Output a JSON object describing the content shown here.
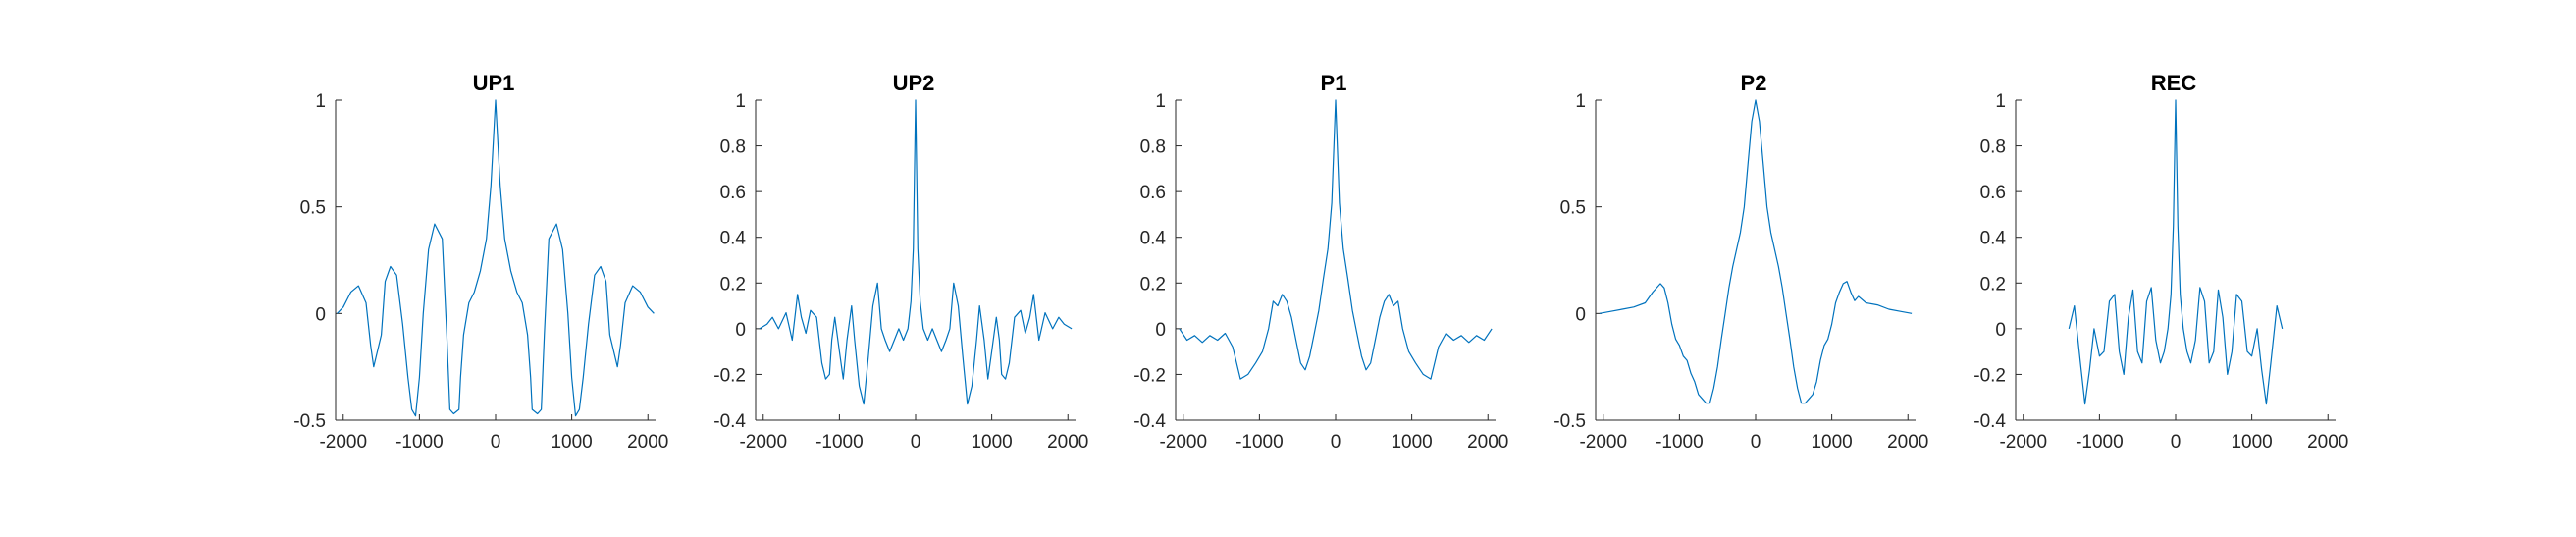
{
  "figure": {
    "background": "#ffffff",
    "line_color": "#0072BD",
    "axis_color": "#262626"
  },
  "chart_data": [
    {
      "type": "line",
      "title": "UP1",
      "xlim": [
        -2100,
        2100
      ],
      "ylim": [
        -0.5,
        1
      ],
      "xticks": [
        -2000,
        -1000,
        0,
        1000,
        2000
      ],
      "xtick_labels": [
        "-2000",
        "-1000",
        "0",
        "1000",
        "2000"
      ],
      "yticks": [
        -0.5,
        0,
        0.5,
        1
      ],
      "ytick_labels": [
        "-0.5",
        "0",
        "0.5",
        "1"
      ],
      "series": [
        {
          "x": [
            -2080,
            -2000,
            -1900,
            -1800,
            -1700,
            -1640,
            -1600,
            -1500,
            -1450,
            -1380,
            -1300,
            -1220,
            -1150,
            -1100,
            -1050,
            -1000,
            -950,
            -880,
            -800,
            -700,
            -640,
            -600,
            -550,
            -480,
            -460,
            -420,
            -350,
            -280,
            -200,
            -120,
            -60,
            0,
            60,
            120,
            200,
            280,
            350,
            420,
            460,
            480,
            550,
            600,
            640,
            700,
            800,
            880,
            950,
            1000,
            1050,
            1100,
            1150,
            1220,
            1300,
            1380,
            1450,
            1500,
            1600,
            1640,
            1700,
            1800,
            1900,
            2000,
            2080
          ],
          "y": [
            0.0,
            0.03,
            0.1,
            0.13,
            0.05,
            -0.15,
            -0.25,
            -0.1,
            0.15,
            0.22,
            0.18,
            -0.05,
            -0.3,
            -0.45,
            -0.48,
            -0.3,
            0.0,
            0.3,
            0.42,
            0.35,
            -0.1,
            -0.45,
            -0.47,
            -0.45,
            -0.3,
            -0.1,
            0.05,
            0.1,
            0.2,
            0.35,
            0.6,
            1.0,
            0.6,
            0.35,
            0.2,
            0.1,
            0.05,
            -0.1,
            -0.3,
            -0.45,
            -0.47,
            -0.45,
            -0.1,
            0.35,
            0.42,
            0.3,
            0.0,
            -0.3,
            -0.48,
            -0.45,
            -0.3,
            -0.05,
            0.18,
            0.22,
            0.15,
            -0.1,
            -0.25,
            -0.15,
            0.05,
            0.13,
            0.1,
            0.03,
            0.0
          ]
        }
      ]
    },
    {
      "type": "line",
      "title": "UP2",
      "xlim": [
        -2100,
        2100
      ],
      "ylim": [
        -0.4,
        1
      ],
      "xticks": [
        -2000,
        -1000,
        0,
        1000,
        2000
      ],
      "xtick_labels": [
        "-2000",
        "-1000",
        "0",
        "1000",
        "2000"
      ],
      "yticks": [
        -0.4,
        -0.2,
        0,
        0.2,
        0.4,
        0.6,
        0.8,
        1
      ],
      "ytick_labels": [
        "-0.4",
        "-0.2",
        "0",
        "0.2",
        "0.4",
        "0.6",
        "0.8",
        "1"
      ],
      "series": [
        {
          "x": [
            -2050,
            -1950,
            -1880,
            -1800,
            -1700,
            -1620,
            -1550,
            -1500,
            -1440,
            -1380,
            -1300,
            -1230,
            -1180,
            -1130,
            -1100,
            -1060,
            -1000,
            -950,
            -900,
            -840,
            -800,
            -740,
            -680,
            -620,
            -560,
            -500,
            -450,
            -400,
            -340,
            -280,
            -220,
            -160,
            -100,
            -60,
            -30,
            0,
            30,
            60,
            100,
            160,
            220,
            280,
            340,
            400,
            450,
            500,
            560,
            620,
            680,
            740,
            800,
            840,
            900,
            950,
            1000,
            1060,
            1100,
            1130,
            1180,
            1230,
            1300,
            1380,
            1440,
            1500,
            1550,
            1620,
            1700,
            1800,
            1880,
            1950,
            2050
          ],
          "y": [
            0.0,
            0.02,
            0.05,
            0.0,
            0.07,
            -0.05,
            0.15,
            0.05,
            -0.02,
            0.08,
            0.05,
            -0.15,
            -0.22,
            -0.2,
            -0.05,
            0.05,
            -0.1,
            -0.22,
            -0.05,
            0.1,
            -0.05,
            -0.25,
            -0.33,
            -0.12,
            0.1,
            0.2,
            0.0,
            -0.05,
            -0.1,
            -0.05,
            0.0,
            -0.05,
            0.0,
            0.12,
            0.35,
            1.0,
            0.35,
            0.12,
            0.0,
            -0.05,
            0.0,
            -0.05,
            -0.1,
            -0.05,
            0.0,
            0.2,
            0.1,
            -0.12,
            -0.33,
            -0.25,
            -0.05,
            0.1,
            -0.05,
            -0.22,
            -0.1,
            0.05,
            -0.05,
            -0.2,
            -0.22,
            -0.15,
            0.05,
            0.08,
            -0.02,
            0.05,
            0.15,
            -0.05,
            0.07,
            0.0,
            0.05,
            0.02,
            0.0
          ]
        }
      ]
    },
    {
      "type": "line",
      "title": "P1",
      "xlim": [
        -2100,
        2100
      ],
      "ylim": [
        -0.4,
        1
      ],
      "xticks": [
        -2000,
        -1000,
        0,
        1000,
        2000
      ],
      "xtick_labels": [
        "-2000",
        "-1000",
        "0",
        "1000",
        "2000"
      ],
      "yticks": [
        -0.4,
        -0.2,
        0,
        0.2,
        0.4,
        0.6,
        0.8,
        1
      ],
      "ytick_labels": [
        "-0.4",
        "-0.2",
        "0",
        "0.2",
        "0.4",
        "0.6",
        "0.8",
        "1"
      ],
      "series": [
        {
          "x": [
            -2050,
            -1950,
            -1850,
            -1750,
            -1650,
            -1550,
            -1450,
            -1350,
            -1250,
            -1150,
            -1050,
            -960,
            -880,
            -820,
            -760,
            -700,
            -640,
            -580,
            -520,
            -460,
            -400,
            -340,
            -280,
            -220,
            -160,
            -100,
            -50,
            0,
            50,
            100,
            160,
            220,
            280,
            340,
            400,
            460,
            520,
            580,
            640,
            700,
            760,
            820,
            880,
            960,
            1050,
            1150,
            1250,
            1350,
            1450,
            1550,
            1650,
            1750,
            1850,
            1950,
            2050
          ],
          "y": [
            0.0,
            -0.05,
            -0.03,
            -0.06,
            -0.03,
            -0.05,
            -0.02,
            -0.08,
            -0.22,
            -0.2,
            -0.15,
            -0.1,
            0.0,
            0.12,
            0.1,
            0.15,
            0.12,
            0.05,
            -0.05,
            -0.15,
            -0.18,
            -0.12,
            -0.02,
            0.08,
            0.22,
            0.35,
            0.55,
            1.0,
            0.55,
            0.35,
            0.22,
            0.08,
            -0.02,
            -0.12,
            -0.18,
            -0.15,
            -0.05,
            0.05,
            0.12,
            0.15,
            0.1,
            0.12,
            0.0,
            -0.1,
            -0.15,
            -0.2,
            -0.22,
            -0.08,
            -0.02,
            -0.05,
            -0.03,
            -0.06,
            -0.03,
            -0.05,
            0.0
          ]
        }
      ]
    },
    {
      "type": "line",
      "title": "P2",
      "xlim": [
        -2100,
        2100
      ],
      "ylim": [
        -0.5,
        1
      ],
      "xticks": [
        -2000,
        -1000,
        0,
        1000,
        2000
      ],
      "xtick_labels": [
        "-2000",
        "-1000",
        "0",
        "1000",
        "2000"
      ],
      "yticks": [
        -0.5,
        0,
        0.5,
        1
      ],
      "ytick_labels": [
        "-0.5",
        "0",
        "0.5",
        "1"
      ],
      "series": [
        {
          "x": [
            -2050,
            -1900,
            -1750,
            -1600,
            -1450,
            -1350,
            -1250,
            -1200,
            -1150,
            -1100,
            -1050,
            -1000,
            -950,
            -900,
            -850,
            -800,
            -750,
            -700,
            -650,
            -600,
            -550,
            -500,
            -450,
            -400,
            -350,
            -300,
            -250,
            -200,
            -150,
            -100,
            -50,
            0,
            50,
            100,
            150,
            200,
            250,
            300,
            350,
            400,
            450,
            500,
            550,
            600,
            650,
            700,
            750,
            800,
            850,
            900,
            950,
            1000,
            1050,
            1100,
            1150,
            1200,
            1250,
            1300,
            1350,
            1450,
            1600,
            1750,
            1900,
            2050
          ],
          "y": [
            0.0,
            0.01,
            0.02,
            0.03,
            0.05,
            0.1,
            0.14,
            0.12,
            0.05,
            -0.05,
            -0.12,
            -0.15,
            -0.2,
            -0.22,
            -0.28,
            -0.32,
            -0.38,
            -0.4,
            -0.42,
            -0.42,
            -0.35,
            -0.25,
            -0.12,
            0.0,
            0.12,
            0.22,
            0.3,
            0.38,
            0.5,
            0.7,
            0.9,
            1.0,
            0.9,
            0.7,
            0.5,
            0.38,
            0.3,
            0.22,
            0.12,
            0.0,
            -0.12,
            -0.25,
            -0.35,
            -0.42,
            -0.42,
            -0.4,
            -0.38,
            -0.32,
            -0.22,
            -0.15,
            -0.12,
            -0.05,
            0.05,
            0.1,
            0.14,
            0.15,
            0.1,
            0.06,
            0.08,
            0.05,
            0.04,
            0.02,
            0.01,
            0.0
          ]
        }
      ]
    },
    {
      "type": "line",
      "title": "REC",
      "xlim": [
        -2100,
        2100
      ],
      "ylim": [
        -0.4,
        1
      ],
      "xticks": [
        -2000,
        -1000,
        0,
        1000,
        2000
      ],
      "xtick_labels": [
        "-2000",
        "-1000",
        "0",
        "1000",
        "2000"
      ],
      "yticks": [
        -0.4,
        -0.2,
        0,
        0.2,
        0.4,
        0.6,
        0.8,
        1
      ],
      "ytick_labels": [
        "-0.4",
        "-0.2",
        "0",
        "0.2",
        "0.4",
        "0.6",
        "0.8",
        "1"
      ],
      "series": [
        {
          "x": [
            -1400,
            -1330,
            -1250,
            -1190,
            -1130,
            -1070,
            -1000,
            -940,
            -870,
            -800,
            -740,
            -680,
            -620,
            -560,
            -500,
            -440,
            -380,
            -320,
            -260,
            -200,
            -150,
            -100,
            -60,
            -30,
            0,
            30,
            60,
            100,
            150,
            200,
            260,
            320,
            380,
            440,
            500,
            560,
            620,
            680,
            740,
            800,
            870,
            940,
            1000,
            1070,
            1130,
            1190,
            1250,
            1330,
            1400
          ],
          "y": [
            0.0,
            0.1,
            -0.15,
            -0.33,
            -0.18,
            0.0,
            -0.12,
            -0.1,
            0.12,
            0.15,
            -0.1,
            -0.2,
            0.05,
            0.17,
            -0.1,
            -0.15,
            0.12,
            0.18,
            -0.05,
            -0.15,
            -0.1,
            0.0,
            0.15,
            0.45,
            1.0,
            0.45,
            0.15,
            0.0,
            -0.1,
            -0.15,
            -0.05,
            0.18,
            0.12,
            -0.15,
            -0.1,
            0.17,
            0.05,
            -0.2,
            -0.1,
            0.15,
            0.12,
            -0.1,
            -0.12,
            0.0,
            -0.18,
            -0.33,
            -0.15,
            0.1,
            0.0
          ]
        }
      ]
    }
  ]
}
